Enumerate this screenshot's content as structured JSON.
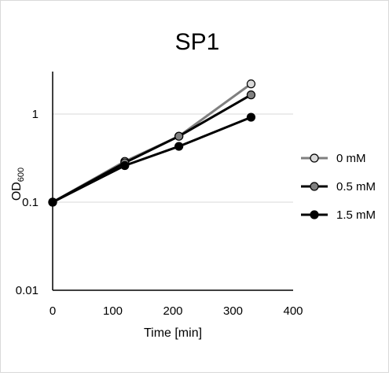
{
  "chart_data": {
    "type": "line",
    "title": "SP1",
    "xlabel": "Time [min]",
    "ylabel": "OD",
    "ylabel_sub": "600",
    "xlim": [
      0,
      400
    ],
    "ylim": [
      0.01,
      3
    ],
    "y_scale": "log",
    "x_ticks": [
      0,
      100,
      200,
      300,
      400
    ],
    "y_ticks": [
      {
        "value": 0.01,
        "label": "0.01"
      },
      {
        "value": 0.1,
        "label": "0.1"
      },
      {
        "value": 1,
        "label": "1"
      }
    ],
    "grid": "horizontal",
    "legend_position": "right",
    "series": [
      {
        "name": "0 mM",
        "color": "#d9d9d9",
        "line_color": "#7f7f7f",
        "x": [
          0,
          120,
          210,
          330
        ],
        "values": [
          0.1,
          0.29,
          0.56,
          2.2
        ]
      },
      {
        "name": "0.5 mM",
        "color": "#808080",
        "line_color": "#000000",
        "x": [
          0,
          120,
          210,
          330
        ],
        "values": [
          0.1,
          0.28,
          0.56,
          1.65
        ]
      },
      {
        "name": "1.5 mM",
        "color": "#000000",
        "line_color": "#000000",
        "x": [
          0,
          120,
          210,
          330
        ],
        "values": [
          0.1,
          0.26,
          0.43,
          0.92
        ]
      }
    ]
  }
}
